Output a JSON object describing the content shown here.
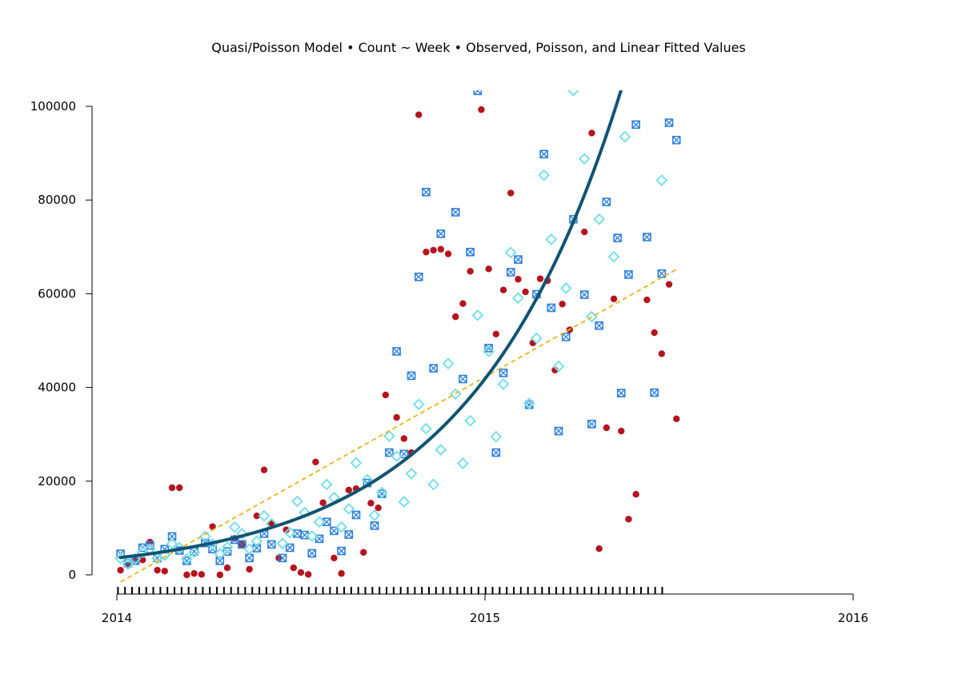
{
  "chart_data": {
    "type": "scatter",
    "title": "Quasi/Poisson Model • Count ~ Week • Observed, Poisson, and Linear Fitted Values",
    "xlabel": "",
    "ylabel": "",
    "x_axis": {
      "min": 2014,
      "max": 2016,
      "ticks": [
        2014,
        2015,
        2016
      ],
      "tick_labels": [
        "2014",
        "2015",
        "2016"
      ]
    },
    "y_axis": {
      "min": 0,
      "max": 100000,
      "ticks": [
        0,
        20000,
        40000,
        60000,
        80000,
        100000
      ],
      "tick_labels": [
        "0",
        "20000",
        "40000",
        "60000",
        "80000",
        "100000"
      ]
    },
    "grid": false,
    "legend": "none",
    "colors": {
      "observed": "#b5141f",
      "fitted_poisson": "#2c7fdb",
      "fitted_linear": "#78dfe8",
      "poisson_curve": "#0f5473",
      "linear_line": "#e8b520"
    },
    "week_rug": {
      "start": 2014.003,
      "count": 78,
      "step": 0.0192
    },
    "series": [
      {
        "marker": "filled-circle",
        "points": [
          [
            2014.01,
            1000
          ],
          [
            2014.03,
            2000
          ],
          [
            2014.05,
            3000
          ],
          [
            2014.07,
            3200
          ],
          [
            2014.09,
            7000
          ],
          [
            2014.11,
            1000
          ],
          [
            2014.13,
            800
          ],
          [
            2014.15,
            18600
          ],
          [
            2014.17,
            18600
          ],
          [
            2014.19,
            0
          ],
          [
            2014.21,
            300
          ],
          [
            2014.23,
            100
          ],
          [
            2014.26,
            10300
          ],
          [
            2014.28,
            0
          ],
          [
            2014.3,
            1500
          ],
          [
            2014.32,
            7800
          ],
          [
            2014.34,
            6500
          ],
          [
            2014.36,
            1200
          ],
          [
            2014.38,
            12600
          ],
          [
            2014.4,
            22400
          ],
          [
            2014.42,
            11000
          ],
          [
            2014.44,
            3600
          ],
          [
            2014.46,
            9600
          ],
          [
            2014.48,
            1500
          ],
          [
            2014.5,
            500
          ],
          [
            2014.52,
            100
          ],
          [
            2014.54,
            24100
          ],
          [
            2014.56,
            15400
          ],
          [
            2014.59,
            3600
          ],
          [
            2014.61,
            300
          ],
          [
            2014.63,
            18100
          ],
          [
            2014.65,
            18400
          ],
          [
            2014.67,
            4800
          ],
          [
            2014.69,
            15300
          ],
          [
            2014.71,
            14300
          ],
          [
            2014.73,
            38400
          ],
          [
            2014.76,
            33600
          ],
          [
            2014.78,
            29100
          ],
          [
            2014.8,
            26100
          ],
          [
            2014.82,
            98200
          ],
          [
            2014.84,
            68900
          ],
          [
            2014.86,
            69300
          ],
          [
            2014.88,
            69500
          ],
          [
            2014.9,
            68500
          ],
          [
            2014.92,
            55100
          ],
          [
            2014.94,
            57900
          ],
          [
            2014.96,
            64800
          ],
          [
            2014.99,
            99300
          ],
          [
            2015.01,
            65300
          ],
          [
            2015.03,
            51400
          ],
          [
            2015.05,
            60800
          ],
          [
            2015.07,
            81500
          ],
          [
            2015.09,
            63100
          ],
          [
            2015.11,
            60400
          ],
          [
            2015.13,
            49500
          ],
          [
            2015.15,
            63200
          ],
          [
            2015.17,
            62800
          ],
          [
            2015.19,
            43700
          ],
          [
            2015.21,
            57800
          ],
          [
            2015.23,
            52300
          ],
          [
            2015.27,
            73200
          ],
          [
            2015.29,
            94300
          ],
          [
            2015.31,
            5600
          ],
          [
            2015.33,
            31400
          ],
          [
            2015.35,
            58900
          ],
          [
            2015.37,
            30700
          ],
          [
            2015.39,
            11900
          ],
          [
            2015.41,
            17200
          ],
          [
            2015.44,
            58700
          ],
          [
            2015.46,
            51700
          ],
          [
            2015.48,
            47200
          ],
          [
            2015.5,
            62000
          ],
          [
            2015.52,
            33300
          ]
        ]
      },
      {
        "marker": "boxed-x",
        "points": [
          [
            2014.01,
            4500
          ],
          [
            2014.03,
            2500
          ],
          [
            2014.05,
            3000
          ],
          [
            2014.07,
            5800
          ],
          [
            2014.09,
            6300
          ],
          [
            2014.11,
            3600
          ],
          [
            2014.13,
            5500
          ],
          [
            2014.15,
            8200
          ],
          [
            2014.17,
            5200
          ],
          [
            2014.19,
            3000
          ],
          [
            2014.21,
            5000
          ],
          [
            2014.24,
            6800
          ],
          [
            2014.26,
            5500
          ],
          [
            2014.28,
            3000
          ],
          [
            2014.3,
            5000
          ],
          [
            2014.32,
            7500
          ],
          [
            2014.34,
            6500
          ],
          [
            2014.36,
            3600
          ],
          [
            2014.38,
            5700
          ],
          [
            2014.4,
            8800
          ],
          [
            2014.42,
            6500
          ],
          [
            2014.45,
            3600
          ],
          [
            2014.47,
            5800
          ],
          [
            2014.49,
            8800
          ],
          [
            2014.51,
            8500
          ],
          [
            2014.53,
            4600
          ],
          [
            2014.55,
            7700
          ],
          [
            2014.57,
            11300
          ],
          [
            2014.59,
            9400
          ],
          [
            2014.61,
            5100
          ],
          [
            2014.63,
            8600
          ],
          [
            2014.65,
            12800
          ],
          [
            2014.68,
            19600
          ],
          [
            2014.7,
            10500
          ],
          [
            2014.72,
            17300
          ],
          [
            2014.74,
            26100
          ],
          [
            2014.76,
            47700
          ],
          [
            2014.78,
            25800
          ],
          [
            2014.8,
            42500
          ],
          [
            2014.82,
            63600
          ],
          [
            2014.84,
            81700
          ],
          [
            2014.86,
            44100
          ],
          [
            2014.88,
            72800
          ],
          [
            2014.92,
            77400
          ],
          [
            2014.94,
            41800
          ],
          [
            2014.96,
            68900
          ],
          [
            2014.98,
            103300
          ],
          [
            2015.01,
            48400
          ],
          [
            2015.03,
            26100
          ],
          [
            2015.05,
            43100
          ],
          [
            2015.07,
            64600
          ],
          [
            2015.09,
            67300
          ],
          [
            2015.12,
            36300
          ],
          [
            2015.14,
            59900
          ],
          [
            2015.16,
            89800
          ],
          [
            2015.18,
            57000
          ],
          [
            2015.2,
            30700
          ],
          [
            2015.22,
            50800
          ],
          [
            2015.24,
            75900
          ],
          [
            2015.27,
            59800
          ],
          [
            2015.29,
            32200
          ],
          [
            2015.31,
            53200
          ],
          [
            2015.33,
            79600
          ],
          [
            2015.36,
            71900
          ],
          [
            2015.37,
            38800
          ],
          [
            2015.39,
            64100
          ],
          [
            2015.41,
            96100
          ],
          [
            2015.44,
            72100
          ],
          [
            2015.46,
            38900
          ],
          [
            2015.48,
            64300
          ],
          [
            2015.5,
            96500
          ],
          [
            2015.52,
            92800
          ]
        ]
      },
      {
        "marker": "open-diamond",
        "points": [
          [
            2014.01,
            3500
          ],
          [
            2014.03,
            2300
          ],
          [
            2014.05,
            3400
          ],
          [
            2014.07,
            4800
          ],
          [
            2014.09,
            5500
          ],
          [
            2014.11,
            3500
          ],
          [
            2014.13,
            4200
          ],
          [
            2014.15,
            6600
          ],
          [
            2014.17,
            5800
          ],
          [
            2014.19,
            3400
          ],
          [
            2014.21,
            4800
          ],
          [
            2014.24,
            8200
          ],
          [
            2014.26,
            6600
          ],
          [
            2014.28,
            4500
          ],
          [
            2014.3,
            5900
          ],
          [
            2014.32,
            10200
          ],
          [
            2014.34,
            8800
          ],
          [
            2014.36,
            5500
          ],
          [
            2014.38,
            7200
          ],
          [
            2014.4,
            12600
          ],
          [
            2014.42,
            10900
          ],
          [
            2014.45,
            6700
          ],
          [
            2014.47,
            9000
          ],
          [
            2014.49,
            15700
          ],
          [
            2014.51,
            13300
          ],
          [
            2014.53,
            8300
          ],
          [
            2014.55,
            11300
          ],
          [
            2014.57,
            19300
          ],
          [
            2014.59,
            16500
          ],
          [
            2014.61,
            10200
          ],
          [
            2014.63,
            14100
          ],
          [
            2014.65,
            23900
          ],
          [
            2014.68,
            20300
          ],
          [
            2014.7,
            12700
          ],
          [
            2014.72,
            17600
          ],
          [
            2014.74,
            29600
          ],
          [
            2014.76,
            25300
          ],
          [
            2014.78,
            15600
          ],
          [
            2014.8,
            21600
          ],
          [
            2014.82,
            36400
          ],
          [
            2014.84,
            31200
          ],
          [
            2014.86,
            19300
          ],
          [
            2014.88,
            26700
          ],
          [
            2014.9,
            45100
          ],
          [
            2014.92,
            38600
          ],
          [
            2014.94,
            23800
          ],
          [
            2014.96,
            32900
          ],
          [
            2014.98,
            55400
          ],
          [
            2015.01,
            47700
          ],
          [
            2015.03,
            29500
          ],
          [
            2015.05,
            40700
          ],
          [
            2015.07,
            68800
          ],
          [
            2015.09,
            59100
          ],
          [
            2015.12,
            36600
          ],
          [
            2015.14,
            50500
          ],
          [
            2015.16,
            85300
          ],
          [
            2015.18,
            71600
          ],
          [
            2015.2,
            44500
          ],
          [
            2015.22,
            61200
          ],
          [
            2015.24,
            103400
          ],
          [
            2015.27,
            88800
          ],
          [
            2015.29,
            55100
          ],
          [
            2015.31,
            75900
          ],
          [
            2015.35,
            67900
          ],
          [
            2015.38,
            93500
          ],
          [
            2015.48,
            84200
          ]
        ]
      }
    ],
    "fits": [
      {
        "kind": "poisson-curve",
        "style": "solid",
        "y0": 3700,
        "rate": 2.45,
        "x_start": 2014.01,
        "x_end": 2015.52
      },
      {
        "kind": "linear-line",
        "style": "dashed",
        "points": [
          [
            2014.01,
            -1500
          ],
          [
            2015.52,
            65200
          ]
        ]
      }
    ]
  }
}
